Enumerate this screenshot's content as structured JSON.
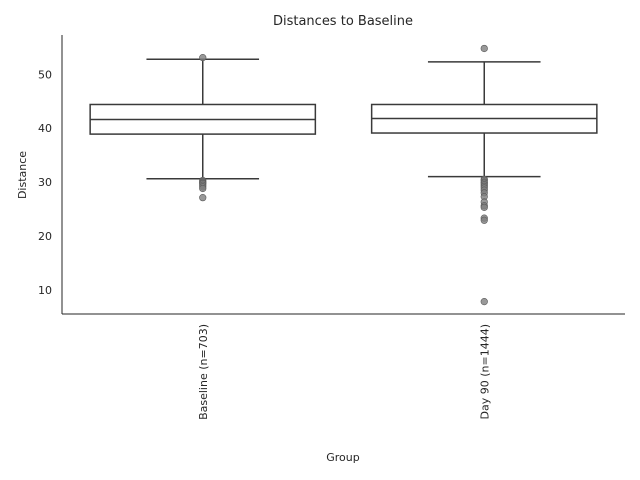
{
  "chart_data": {
    "type": "box",
    "title": "Distances to Baseline",
    "xlabel": "Group",
    "ylabel": "Distance",
    "ylim": [
      5.5,
      57.3
    ],
    "yticks": [
      10,
      20,
      30,
      40,
      50
    ],
    "grid": false,
    "categories": [
      "Baseline (n=703)",
      "Day 90 (n=1444)"
    ],
    "boxes": [
      {
        "name": "Baseline (n=703)",
        "whisker_low": 30.6,
        "q1": 38.9,
        "median": 41.6,
        "q3": 44.4,
        "whisker_high": 52.8,
        "fliers": [
          53.1,
          30.3,
          30.1,
          29.9,
          29.7,
          29.4,
          29.1,
          28.8,
          27.1
        ]
      },
      {
        "name": "Day 90 (n=1444)",
        "whisker_low": 31.0,
        "q1": 39.1,
        "median": 41.8,
        "q3": 44.4,
        "whisker_high": 52.3,
        "fliers": [
          54.8,
          30.5,
          30.3,
          30.0,
          29.8,
          29.5,
          29.2,
          28.9,
          28.5,
          28.0,
          27.3,
          26.3,
          25.6,
          25.3,
          23.3,
          22.9,
          7.8
        ]
      }
    ]
  }
}
